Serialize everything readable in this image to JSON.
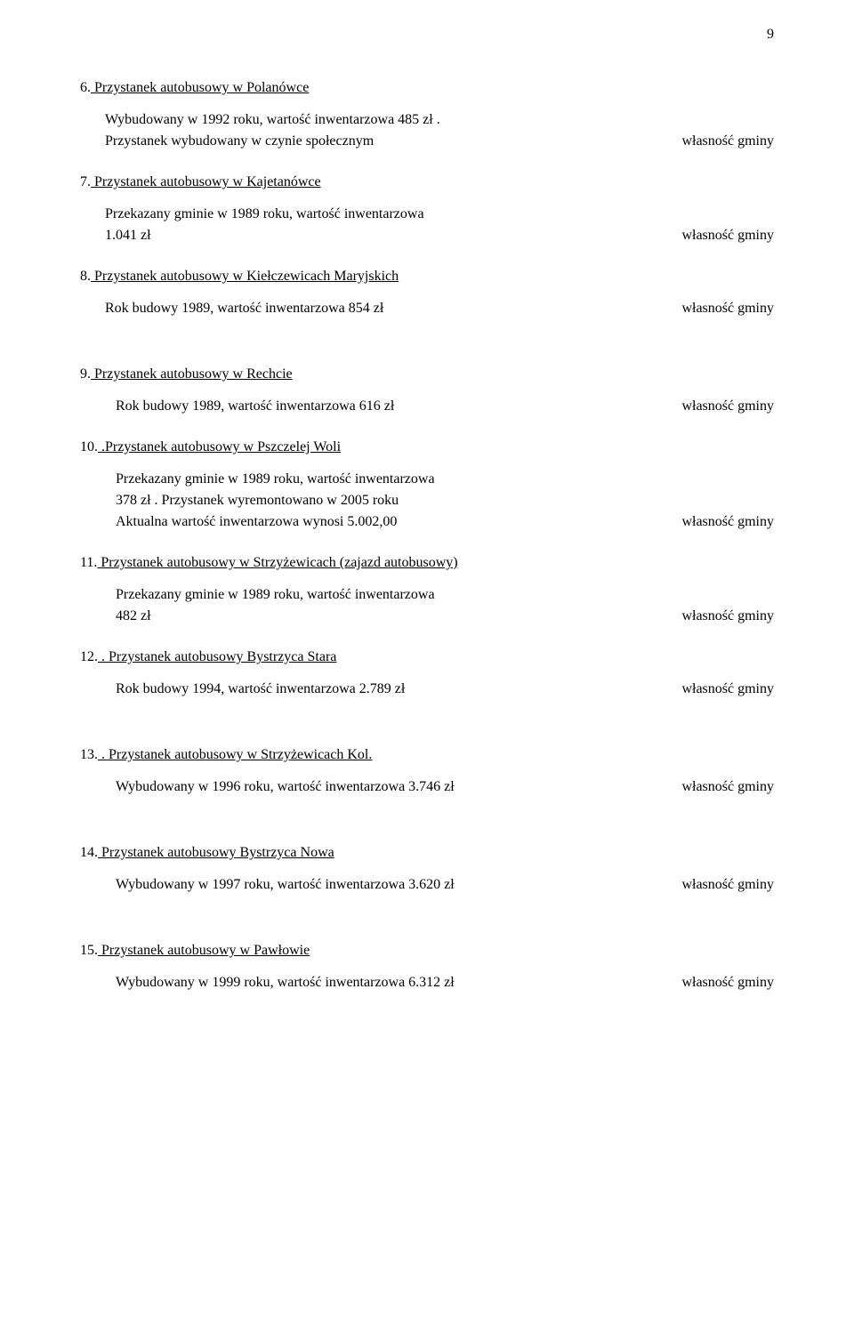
{
  "pageNumber": "9",
  "ownershipLabel": "własność gminy",
  "items": [
    {
      "num": "6.",
      "title": " Przystanek autobusowy w Polanówce",
      "underlineTitle": true,
      "firstMarginTop": true,
      "lines": [
        {
          "text": "Wybudowany w 1992 roku, wartość inwentarzowa  485 zł .",
          "ownership": false,
          "indented": true
        },
        {
          "text": "Przystanek wybudowany w czynie społecznym",
          "ownership": true,
          "indented": true
        }
      ]
    },
    {
      "num": "7.",
      "title": " Przystanek autobusowy w Kajetanówce",
      "underlineTitle": true,
      "lines": [
        {
          "text": "Przekazany gminie w 1989 roku, wartość inwentarzowa",
          "ownership": false,
          "indented": true
        },
        {
          "text": "1.041 zł",
          "ownership": true,
          "indented": true
        }
      ]
    },
    {
      "num": "8.",
      "title": " Przystanek autobusowy w Kiełczewicach Maryjskich",
      "underlineTitle": true,
      "lines": [
        {
          "text": "Rok budowy  1989, wartość inwentarzowa 854 zł",
          "ownership": true,
          "indented": true
        }
      ]
    },
    {
      "num": "9.",
      "title": "  Przystanek autobusowy w Rechcie",
      "underlineTitle": true,
      "extraGapBefore": true,
      "lines": [
        {
          "text": "Rok budowy 1989, wartość inwentarzowa 616 zł",
          "ownership": true,
          "indented": true,
          "extraIndent": true
        }
      ]
    },
    {
      "num": "10.",
      "title": " .Przystanek autobusowy w Pszczelej Woli",
      "underlineTitle": true,
      "lines": [
        {
          "text": "Przekazany gminie w 1989 roku, wartość inwentarzowa",
          "ownership": false,
          "indented": true,
          "extraIndent": true
        },
        {
          "text": "378 zł . Przystanek  wyremontowano w 2005 roku",
          "ownership": false,
          "indented": true,
          "extraIndent": true
        },
        {
          "text": "Aktualna wartość inwentarzowa wynosi 5.002,00",
          "ownership": true,
          "indented": true,
          "extraIndent": true
        }
      ]
    },
    {
      "num": "11.",
      "title": "  Przystanek autobusowy w Strzyżewicach (zajazd autobusowy)",
      "underlineTitle": true,
      "lines": [
        {
          "text": "Przekazany gminie w 1989 roku, wartość inwentarzowa",
          "ownership": false,
          "indented": true,
          "extraIndent": true
        },
        {
          "text": "482 zł",
          "ownership": true,
          "indented": true,
          "extraIndent": true
        }
      ]
    },
    {
      "num": "12.",
      "title": " . Przystanek autobusowy Bystrzyca Stara",
      "underlineTitle": true,
      "lines": [
        {
          "text": "Rok budowy 1994, wartość inwentarzowa 2.789 zł",
          "ownership": true,
          "indented": true,
          "extraIndent": true
        }
      ]
    },
    {
      "num": "13.",
      "title": " . Przystanek autobusowy w Strzyżewicach Kol.",
      "underlineTitle": true,
      "extraGapBefore": true,
      "lines": [
        {
          "text": "Wybudowany w 1996 roku, wartość inwentarzowa 3.746 zł",
          "ownership": true,
          "indented": true,
          "extraIndent": true
        }
      ]
    },
    {
      "num": "14.",
      "title": "   Przystanek autobusowy Bystrzyca Nowa",
      "underlineTitle": true,
      "extraGapBefore": true,
      "lines": [
        {
          "text": "Wybudowany w 1997 roku, wartość inwentarzowa 3.620 zł",
          "ownership": true,
          "indented": true,
          "extraIndent": true
        }
      ]
    },
    {
      "num": "15.",
      "title": "    Przystanek autobusowy w Pawłowie",
      "underlineTitle": true,
      "extraGapBefore": true,
      "lines": [
        {
          "text": "Wybudowany w 1999 roku, wartość inwentarzowa 6.312 zł",
          "ownership": true,
          "indented": true,
          "extraIndent": true
        }
      ]
    }
  ]
}
